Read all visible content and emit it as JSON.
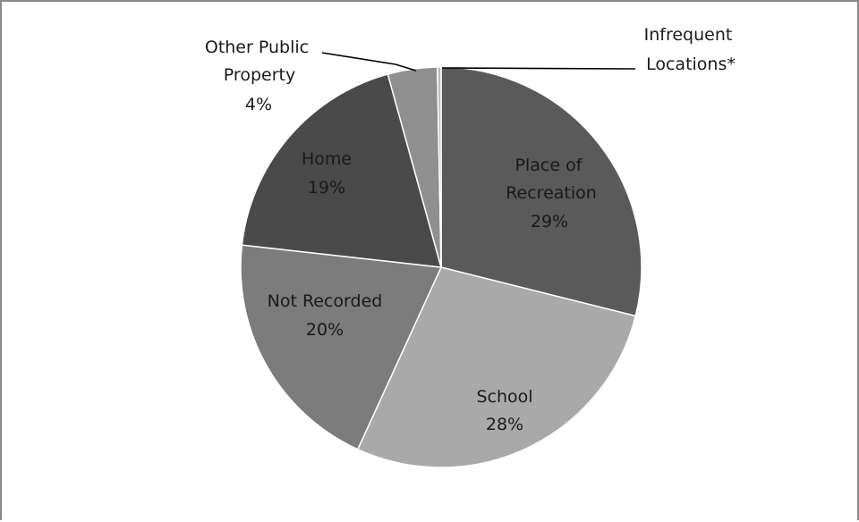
{
  "chart_data": {
    "type": "pie",
    "slices": [
      {
        "label": "Place of Recreation",
        "value": 29,
        "value_label": "29%",
        "color": "#5a5a5a"
      },
      {
        "label": "School",
        "value": 28,
        "value_label": "28%",
        "color": "#a9a9a9"
      },
      {
        "label": "Not Recorded",
        "value": 20,
        "value_label": "20%",
        "color": "#7c7c7c"
      },
      {
        "label": "Home",
        "value": 19,
        "value_label": "19%",
        "color": "#4a4a4a"
      },
      {
        "label": "Other Public Property",
        "value": 4,
        "value_label": "4%",
        "color": "#8f8f8f"
      },
      {
        "label": "Infrequent Locations*",
        "value": 0.3,
        "value_label": "",
        "color": "#bcbcbc"
      }
    ],
    "title": "",
    "legend": "none",
    "start_angle": "12 o'clock",
    "direction": "clockwise"
  }
}
